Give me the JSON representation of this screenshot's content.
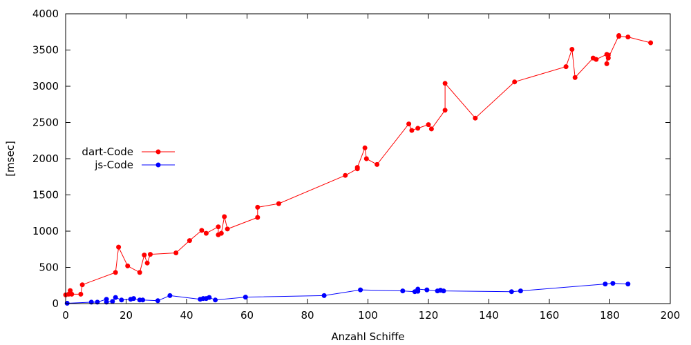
{
  "chart_data": {
    "type": "line",
    "title": "",
    "xlabel": "Anzahl Schiffe",
    "ylabel": "[msec]",
    "xlim": [
      0,
      200
    ],
    "ylim": [
      0,
      4000
    ],
    "xticks": [
      0,
      20,
      40,
      60,
      80,
      100,
      120,
      140,
      160,
      180,
      200
    ],
    "yticks": [
      0,
      500,
      1000,
      1500,
      2000,
      2500,
      3000,
      3500,
      4000
    ],
    "grid": false,
    "legend_position": "left-center",
    "series": [
      {
        "name": "dart-Code",
        "color": "#ff0000",
        "marker": "circle",
        "points": [
          [
            0,
            120
          ],
          [
            1,
            130
          ],
          [
            1.5,
            150
          ],
          [
            1.5,
            180
          ],
          [
            2,
            130
          ],
          [
            5,
            130
          ],
          [
            5.5,
            260
          ],
          [
            16.5,
            430
          ],
          [
            17.5,
            780
          ],
          [
            20.5,
            520
          ],
          [
            24.5,
            430
          ],
          [
            26,
            670
          ],
          [
            27,
            560
          ],
          [
            28,
            680
          ],
          [
            36.5,
            700
          ],
          [
            41,
            870
          ],
          [
            45,
            1010
          ],
          [
            46.5,
            970
          ],
          [
            50.5,
            1060
          ],
          [
            50.5,
            950
          ],
          [
            51.5,
            970
          ],
          [
            52.5,
            1200
          ],
          [
            53.5,
            1030
          ],
          [
            63.5,
            1190
          ],
          [
            63.5,
            1330
          ],
          [
            70.5,
            1380
          ],
          [
            92.5,
            1770
          ],
          [
            96.5,
            1860
          ],
          [
            96.5,
            1880
          ],
          [
            99,
            2150
          ],
          [
            99.5,
            2000
          ],
          [
            103,
            1920
          ],
          [
            113.5,
            2480
          ],
          [
            114.5,
            2390
          ],
          [
            116.5,
            2420
          ],
          [
            120,
            2470
          ],
          [
            121,
            2410
          ],
          [
            125.5,
            2670
          ],
          [
            125.5,
            3040
          ],
          [
            135.5,
            2560
          ],
          [
            148.5,
            3060
          ],
          [
            165.5,
            3270
          ],
          [
            167.5,
            3510
          ],
          [
            168.5,
            3120
          ],
          [
            174.5,
            3390
          ],
          [
            175.5,
            3370
          ],
          [
            179,
            3440
          ],
          [
            179,
            3310
          ],
          [
            179.5,
            3430
          ],
          [
            179.5,
            3390
          ],
          [
            183,
            3700
          ],
          [
            183,
            3690
          ],
          [
            186,
            3680
          ],
          [
            193.5,
            3600
          ]
        ]
      },
      {
        "name": "js-Code",
        "color": "#0000ff",
        "marker": "circle",
        "points": [
          [
            0.5,
            5
          ],
          [
            8.5,
            20
          ],
          [
            10.5,
            20
          ],
          [
            13.5,
            60
          ],
          [
            13.5,
            20
          ],
          [
            15.5,
            30
          ],
          [
            16.5,
            85
          ],
          [
            18.5,
            50
          ],
          [
            21.5,
            60
          ],
          [
            22.5,
            70
          ],
          [
            24.5,
            50
          ],
          [
            25.5,
            50
          ],
          [
            30.5,
            40
          ],
          [
            34.5,
            110
          ],
          [
            44.5,
            60
          ],
          [
            45.5,
            70
          ],
          [
            46.5,
            70
          ],
          [
            47.5,
            85
          ],
          [
            49.5,
            50
          ],
          [
            59.5,
            90
          ],
          [
            85.5,
            110
          ],
          [
            97.5,
            190
          ],
          [
            111.5,
            175
          ],
          [
            115.5,
            165
          ],
          [
            116.5,
            170
          ],
          [
            116.5,
            200
          ],
          [
            119.5,
            190
          ],
          [
            123,
            175
          ],
          [
            124,
            185
          ],
          [
            125,
            175
          ],
          [
            147.5,
            165
          ],
          [
            150.5,
            175
          ],
          [
            178.5,
            270
          ],
          [
            181,
            280
          ],
          [
            186,
            270
          ]
        ]
      }
    ]
  }
}
